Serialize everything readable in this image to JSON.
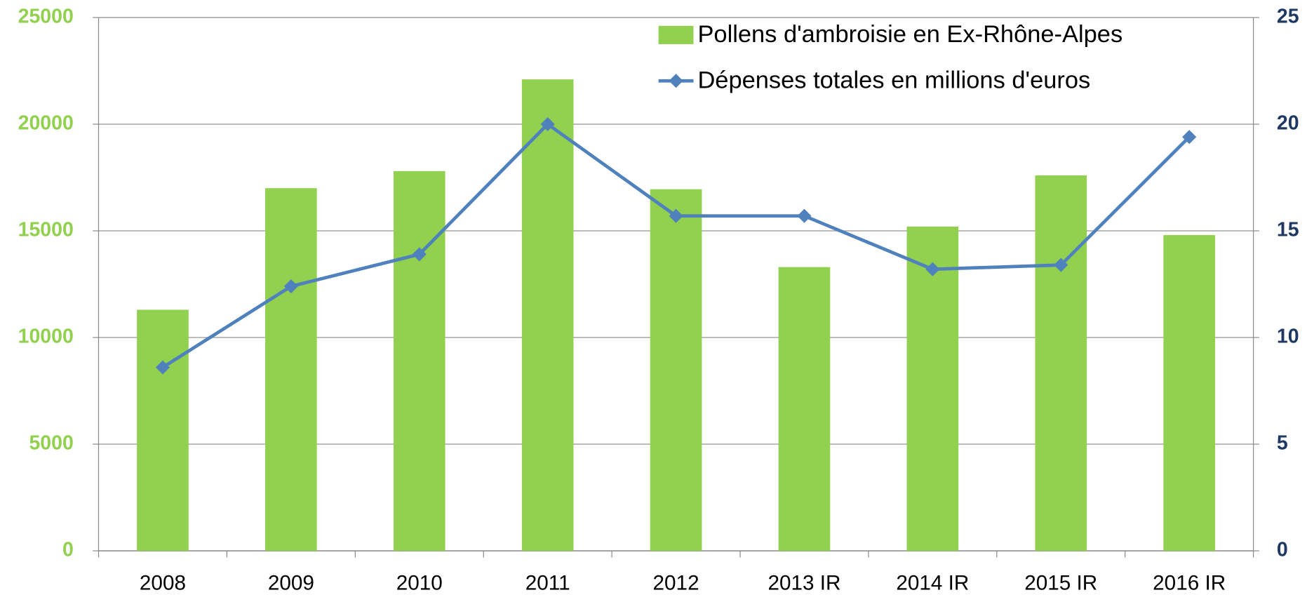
{
  "chart_data": {
    "type": "bar_line",
    "categories": [
      "2008",
      "2009",
      "2010",
      "2011",
      "2012",
      "2013 IR",
      "2014 IR",
      "2015 IR",
      "2016 IR"
    ],
    "series": [
      {
        "name": "Pollens d'ambroisie en Ex-Rhône-Alpes",
        "color": "#92d050",
        "type": "bar",
        "axis": "y",
        "values": [
          11300,
          17000,
          17800,
          22100,
          16950,
          13300,
          15200,
          17600,
          14800
        ]
      },
      {
        "name": "Dépenses totales en millions d'euros",
        "color": "#4f81bd",
        "type": "line",
        "axis": "y2",
        "values": [
          8.6,
          12.4,
          13.9,
          20.0,
          15.7,
          15.7,
          13.2,
          13.4,
          19.4
        ]
      }
    ],
    "ylim": [
      0,
      25000
    ],
    "yticks": [
      0,
      5000,
      10000,
      15000,
      20000,
      25000
    ],
    "y2lim": [
      0,
      25
    ],
    "y2ticks": [
      0,
      5,
      10,
      15,
      20,
      25
    ],
    "grid": true,
    "legend": "top-right"
  }
}
